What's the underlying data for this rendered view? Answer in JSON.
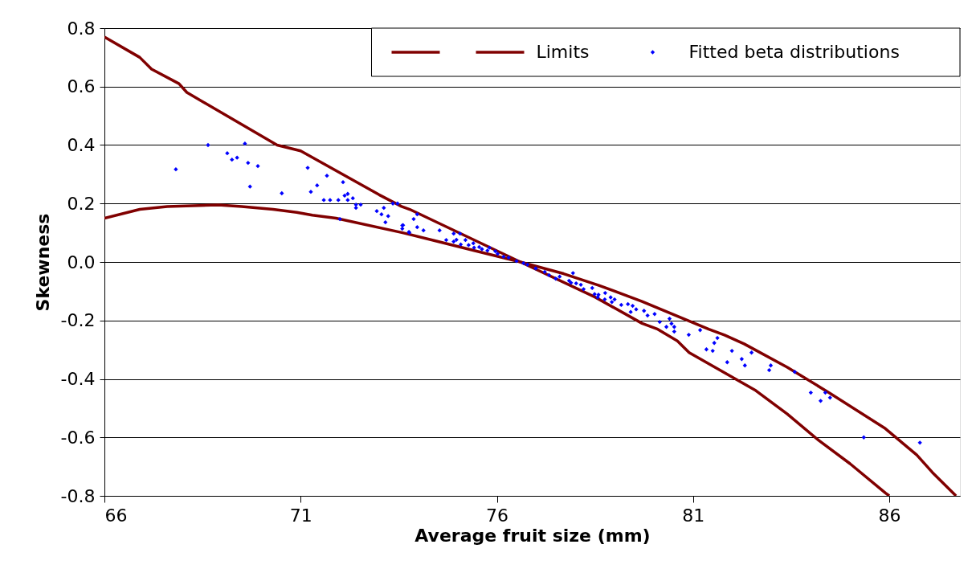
{
  "chart_data": {
    "type": "line",
    "xlabel": "Average fruit size (mm)",
    "ylabel": "Skewness",
    "xlim": [
      66,
      87.8
    ],
    "xticks": [
      66,
      71,
      76,
      81,
      86
    ],
    "ylim": [
      -0.8,
      0.8
    ],
    "yticks": [
      {
        "value": -0.8,
        "label": "-0.8"
      },
      {
        "value": -0.6,
        "label": "-0.6"
      },
      {
        "value": -0.4,
        "label": "-0.4"
      },
      {
        "value": -0.2,
        "label": "-0.2"
      },
      {
        "value": 0,
        "label": "0.0"
      },
      {
        "value": 0.2,
        "label": "0.2"
      },
      {
        "value": 0.4,
        "label": "0.4"
      },
      {
        "value": 0.6,
        "label": "0.6"
      },
      {
        "value": 0.8,
        "label": "0.8"
      }
    ],
    "grid": "y",
    "legend": "top right",
    "line_style": "solid",
    "series": [
      {
        "color": "#800000",
        "marker": "none",
        "x": [
          66,
          66.9,
          67.2,
          67.9,
          68.1,
          70.4,
          71,
          73.0,
          73.57,
          73.78,
          76.6,
          78.5,
          79.7,
          80.1,
          80.6,
          80.9,
          82.6,
          83.4,
          84.2,
          85.0,
          85.9,
          86.0
        ],
        "values": [
          0.77,
          0.7,
          0.66,
          0.61,
          0.58,
          0.4,
          0.38,
          0.23,
          0.19,
          0.18,
          0.0,
          -0.12,
          -0.21,
          -0.23,
          -0.27,
          -0.31,
          -0.44,
          -0.52,
          -0.61,
          -0.69,
          -0.79,
          -0.8
        ]
      },
      {
        "name": "Limits",
        "color": "#800000",
        "marker": "none",
        "x": [
          66,
          66.9,
          67.6,
          68.9,
          69.5,
          70.3,
          70.9,
          71.3,
          71.9,
          73.6,
          74.5,
          75.4,
          76.6,
          77.7,
          78.6,
          79.4,
          79.7,
          80.5,
          81.4,
          81.8,
          82.3,
          83.4,
          84.5,
          85.9,
          86.7,
          87.1,
          87.7
        ],
        "values": [
          0.15,
          0.18,
          0.19,
          0.195,
          0.19,
          0.18,
          0.17,
          0.16,
          0.15,
          0.1,
          0.07,
          0.04,
          0.0,
          -0.04,
          -0.08,
          -0.12,
          -0.135,
          -0.18,
          -0.23,
          -0.25,
          -0.28,
          -0.36,
          -0.45,
          -0.57,
          -0.66,
          -0.72,
          -0.8
        ]
      },
      {
        "type": "scatter",
        "name": "Fitted beta distributions",
        "color": "#0000ff",
        "marker": "diamond",
        "x": [
          67.82,
          68.64,
          69.13,
          69.25,
          69.38,
          69.58,
          69.66,
          69.71,
          69.91,
          70.52,
          71.18,
          71.26,
          71.42,
          71.67,
          71.59,
          71.75,
          71.96,
          72.0,
          72.08,
          72.12,
          72.2,
          72.2,
          72.33,
          72.41,
          72.41,
          72.53,
          72.94,
          73.06,
          73.12,
          73.23,
          73.16,
          73.35,
          73.47,
          73.59,
          73.59,
          73.76,
          73.61,
          73.77,
          73.88,
          73.97,
          73.97,
          74.13,
          74.54,
          74.71,
          74.9,
          74.9,
          74.97,
          75.06,
          75.08,
          75.2,
          75.28,
          75.4,
          75.42,
          75.55,
          75.62,
          75.76,
          75.81,
          75.96,
          76.02,
          76.17,
          76.3,
          76.5,
          76.68,
          76.78,
          76.99,
          77.22,
          77.33,
          77.5,
          77.6,
          77.94,
          77.84,
          77.89,
          78.02,
          78.14,
          78.21,
          78.43,
          78.49,
          78.59,
          78.57,
          78.76,
          78.75,
          78.9,
          78.93,
          79.0,
          79.17,
          79.34,
          79.41,
          79.46,
          79.55,
          79.75,
          79.84,
          80.02,
          80.4,
          80.15,
          80.32,
          80.45,
          80.52,
          80.52,
          80.89,
          81.18,
          81.62,
          81.54,
          81.34,
          81.5,
          81.99,
          81.87,
          82.24,
          82.32,
          82.49,
          82.94,
          82.98,
          83.59,
          84.0,
          84.25,
          84.37,
          84.49,
          85.35,
          86.78
        ],
        "values": [
          0.317,
          0.4,
          0.372,
          0.35,
          0.357,
          0.405,
          0.339,
          0.258,
          0.328,
          0.235,
          0.322,
          0.24,
          0.262,
          0.295,
          0.212,
          0.212,
          0.212,
          0.147,
          0.273,
          0.227,
          0.233,
          0.212,
          0.218,
          0.196,
          0.185,
          0.196,
          0.174,
          0.163,
          0.185,
          0.157,
          0.136,
          0.2,
          0.2,
          0.125,
          0.114,
          0.103,
          0.126,
          0.1,
          0.147,
          0.163,
          0.119,
          0.108,
          0.108,
          0.075,
          0.097,
          0.07,
          0.076,
          0.097,
          0.06,
          0.075,
          0.058,
          0.064,
          0.049,
          0.051,
          0.044,
          0.039,
          0.049,
          0.037,
          0.028,
          0.018,
          0.015,
          0.003,
          -0.004,
          -0.009,
          -0.022,
          -0.034,
          -0.045,
          -0.057,
          -0.05,
          -0.038,
          -0.064,
          -0.071,
          -0.073,
          -0.078,
          -0.093,
          -0.089,
          -0.11,
          -0.112,
          -0.121,
          -0.106,
          -0.128,
          -0.121,
          -0.137,
          -0.128,
          -0.147,
          -0.144,
          -0.171,
          -0.15,
          -0.162,
          -0.167,
          -0.183,
          -0.178,
          -0.194,
          -0.205,
          -0.222,
          -0.211,
          -0.222,
          -0.238,
          -0.249,
          -0.233,
          -0.26,
          -0.277,
          -0.299,
          -0.304,
          -0.304,
          -0.343,
          -0.332,
          -0.354,
          -0.31,
          -0.37,
          -0.354,
          -0.376,
          -0.447,
          -0.475,
          -0.447,
          -0.464,
          -0.6,
          -0.618
        ]
      }
    ]
  }
}
